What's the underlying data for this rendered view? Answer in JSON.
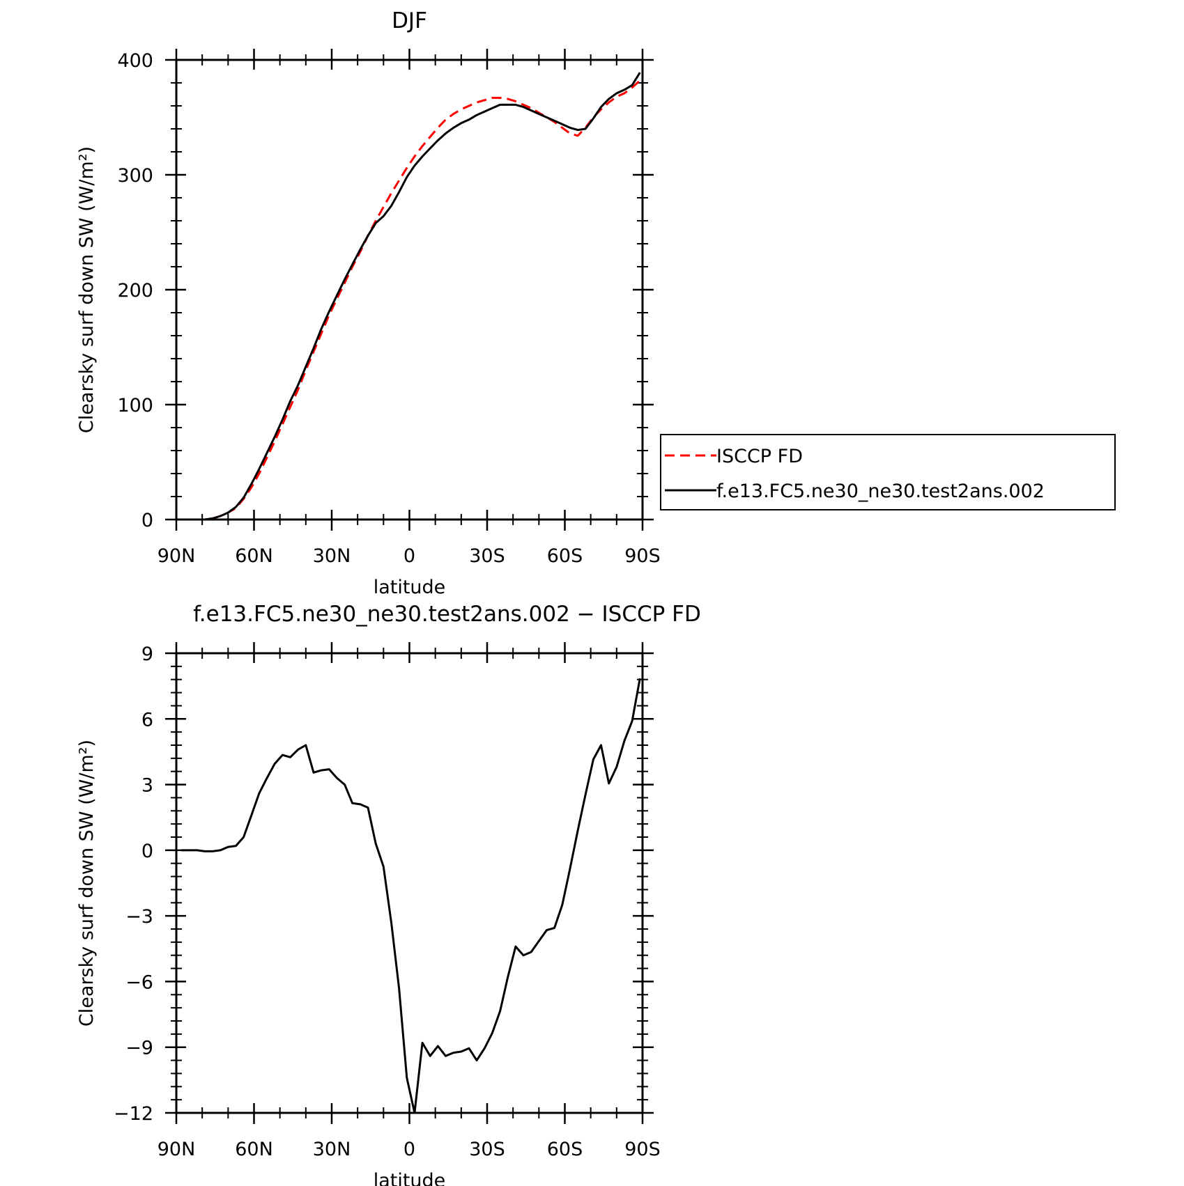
{
  "chart_data": [
    {
      "type": "line",
      "title": "DJF",
      "xlabel": "latitude",
      "ylabel": "Clearsky surf down SW (W/m²)",
      "x_ticks": [
        "90N",
        "60N",
        "30N",
        "0",
        "30S",
        "60S",
        "90S"
      ],
      "x_tick_values": [
        90,
        60,
        30,
        0,
        -30,
        -60,
        -90
      ],
      "xlim": [
        90,
        -90
      ],
      "y_ticks": [
        "0",
        "100",
        "200",
        "300",
        "400"
      ],
      "ylim": [
        0,
        400
      ],
      "grid": false,
      "legend": "right",
      "series": [
        {
          "name": "ISCCP FD",
          "color": "#ff0000",
          "dash": "dashed",
          "x": [
            88,
            85,
            82,
            79,
            76,
            73,
            70,
            67,
            64,
            61,
            58,
            55,
            52,
            49,
            46,
            43,
            40,
            37,
            34,
            31,
            28,
            25,
            22,
            19,
            16,
            13,
            10,
            7,
            4,
            1,
            -2,
            -5,
            -8,
            -11,
            -14,
            -17,
            -20,
            -23,
            -26,
            -29,
            -32,
            -35,
            -38,
            -41,
            -44,
            -47,
            -50,
            -53,
            -56,
            -59,
            -62,
            -65,
            -68,
            -71,
            -74,
            -77,
            -80,
            -83,
            -86,
            -89
          ],
          "y": [
            0,
            0,
            0,
            0,
            1,
            3,
            6,
            10,
            18,
            28,
            40,
            54,
            68,
            83,
            98,
            113,
            130,
            146,
            162,
            178,
            192,
            206,
            220,
            233,
            247,
            260,
            272,
            284,
            295,
            306,
            316,
            325,
            333,
            341,
            348,
            353,
            357,
            360,
            363,
            365,
            367,
            367,
            366,
            364,
            361,
            358,
            354,
            350,
            346,
            341,
            336,
            334,
            341,
            350,
            357,
            363,
            368,
            371,
            376,
            382
          ]
        },
        {
          "name": "f.e13.FC5.ne30_ne30.test2ans.002",
          "color": "#000000",
          "dash": "solid",
          "x": [
            88,
            85,
            82,
            79,
            76,
            73,
            70,
            67,
            64,
            61,
            58,
            55,
            52,
            49,
            46,
            43,
            40,
            37,
            34,
            31,
            28,
            25,
            22,
            19,
            16,
            13,
            10,
            7,
            4,
            1,
            -2,
            -5,
            -8,
            -11,
            -14,
            -17,
            -20,
            -23,
            -26,
            -29,
            -32,
            -35,
            -38,
            -41,
            -44,
            -47,
            -50,
            -53,
            -56,
            -59,
            -62,
            -65,
            -68,
            -71,
            -74,
            -77,
            -80,
            -83,
            -86,
            -89
          ],
          "y": [
            0,
            0,
            0,
            0,
            1,
            3,
            6,
            11,
            19,
            31,
            44,
            58,
            72,
            87,
            103,
            117,
            133,
            149,
            166,
            181,
            195,
            209,
            222,
            235,
            247,
            258,
            264,
            273,
            285,
            298,
            308,
            316,
            323,
            330,
            336,
            341,
            345,
            348,
            352,
            355,
            358,
            361,
            361,
            361,
            359,
            356,
            353,
            350,
            347,
            344,
            341,
            339,
            340,
            349,
            359,
            366,
            371,
            374,
            378,
            389
          ]
        }
      ]
    },
    {
      "type": "line",
      "title": "f.e13.FC5.ne30_ne30.test2ans.002 − ISCCP FD",
      "xlabel": "latitude",
      "ylabel": "Clearsky surf down SW (W/m²)",
      "x_ticks": [
        "90N",
        "60N",
        "30N",
        "0",
        "30S",
        "60S",
        "90S"
      ],
      "x_tick_values": [
        90,
        60,
        30,
        0,
        -30,
        -60,
        -90
      ],
      "xlim": [
        90,
        -90
      ],
      "y_ticks": [
        "9",
        "6",
        "3",
        "0",
        "−3",
        "−6",
        "−9",
        "−12"
      ],
      "y_tick_values": [
        9,
        6,
        3,
        0,
        -3,
        -6,
        -9,
        -12
      ],
      "ylim": [
        -12,
        9
      ],
      "grid": false,
      "series": [
        {
          "name": "",
          "color": "#000000",
          "dash": "solid",
          "x": [
            88,
            85,
            82,
            79,
            76,
            73,
            70,
            67,
            64,
            61,
            58,
            55,
            52,
            49,
            46,
            43,
            40,
            37,
            34,
            31,
            28,
            25,
            22,
            19,
            16,
            13,
            10,
            7,
            4,
            1,
            -2,
            -5,
            -8,
            -11,
            -14,
            -17,
            -20,
            -23,
            -26,
            -29,
            -32,
            -35,
            -38,
            -41,
            -44,
            -47,
            -50,
            -53,
            -56,
            -59,
            -62,
            -65,
            -68,
            -71,
            -74,
            -77,
            -80,
            -83,
            -86,
            -89
          ],
          "y": [
            0,
            0,
            0,
            -0.05,
            -0.05,
            0,
            0.15,
            0.2,
            0.6,
            1.6,
            2.6,
            3.3,
            3.95,
            4.35,
            4.25,
            4.6,
            4.8,
            3.55,
            3.65,
            3.7,
            3.3,
            3.0,
            2.15,
            2.1,
            1.95,
            0.3,
            -0.75,
            -3.3,
            -6.3,
            -10.4,
            -12.0,
            -8.8,
            -9.4,
            -8.95,
            -9.4,
            -9.25,
            -9.2,
            -9.05,
            -9.6,
            -9.05,
            -8.35,
            -7.35,
            -5.8,
            -4.4,
            -4.8,
            -4.65,
            -4.15,
            -3.65,
            -3.55,
            -2.5,
            -0.85,
            0.9,
            2.55,
            4.15,
            4.8,
            3.05,
            3.8,
            5.0,
            5.9,
            7.85
          ]
        }
      ]
    }
  ]
}
